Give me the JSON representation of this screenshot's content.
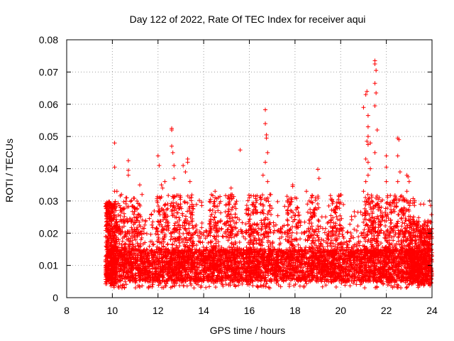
{
  "chart_data": {
    "type": "scatter",
    "title": "Day 122 of 2022, Rate Of TEC Index for receiver aqui",
    "xlabel": "GPS time / hours",
    "ylabel": "ROTI / TECUs",
    "xlim": [
      8,
      24
    ],
    "ylim": [
      0,
      0.08
    ],
    "xticks": [
      "8",
      "10",
      "12",
      "14",
      "16",
      "18",
      "20",
      "22",
      "24"
    ],
    "yticks": [
      "0",
      "0.01",
      "0.02",
      "0.03",
      "0.04",
      "0.05",
      "0.06",
      "0.07",
      "0.08"
    ],
    "grid": true,
    "marker": "+",
    "marker_color": "#ff0000",
    "series": [
      {
        "name": "ROTI",
        "x_range": [
          9.7,
          24.0
        ],
        "typical_range": [
          0.003,
          0.02
        ],
        "dense_band": [
          0.005,
          0.015
        ],
        "outliers": [
          [
            10.1,
            0.048
          ],
          [
            10.1,
            0.0405
          ],
          [
            10.1,
            0.033
          ],
          [
            10.2,
            0.033
          ],
          [
            10.7,
            0.0425
          ],
          [
            10.7,
            0.0395
          ],
          [
            10.7,
            0.038
          ],
          [
            11.2,
            0.035
          ],
          [
            11.3,
            0.032
          ],
          [
            12.0,
            0.044
          ],
          [
            12.05,
            0.041
          ],
          [
            12.15,
            0.035
          ],
          [
            12.2,
            0.034
          ],
          [
            12.3,
            0.036
          ],
          [
            12.6,
            0.052
          ],
          [
            12.6,
            0.0525
          ],
          [
            12.6,
            0.047
          ],
          [
            12.65,
            0.045
          ],
          [
            12.7,
            0.041
          ],
          [
            12.7,
            0.037
          ],
          [
            13.1,
            0.041
          ],
          [
            13.2,
            0.039
          ],
          [
            13.3,
            0.043
          ],
          [
            13.3,
            0.042
          ],
          [
            13.4,
            0.036
          ],
          [
            14.5,
            0.033
          ],
          [
            14.5,
            0.031
          ],
          [
            15.2,
            0.034
          ],
          [
            15.2,
            0.032
          ],
          [
            15.6,
            0.0458
          ],
          [
            16.0,
            0.031
          ],
          [
            16.7,
            0.0583
          ],
          [
            16.7,
            0.054
          ],
          [
            16.75,
            0.0505
          ],
          [
            16.75,
            0.0495
          ],
          [
            16.8,
            0.045
          ],
          [
            16.7,
            0.042
          ],
          [
            16.6,
            0.038
          ],
          [
            16.8,
            0.036
          ],
          [
            16.9,
            0.032
          ],
          [
            16.5,
            0.031
          ],
          [
            17.9,
            0.035
          ],
          [
            17.9,
            0.0345
          ],
          [
            18.0,
            0.031
          ],
          [
            18.5,
            0.033
          ],
          [
            19.0,
            0.0398
          ],
          [
            19.05,
            0.037
          ],
          [
            21.0,
            0.059
          ],
          [
            21.1,
            0.063
          ],
          [
            21.15,
            0.064
          ],
          [
            21.2,
            0.0565
          ],
          [
            21.2,
            0.053
          ],
          [
            21.2,
            0.05
          ],
          [
            21.15,
            0.0485
          ],
          [
            21.2,
            0.0475
          ],
          [
            21.3,
            0.048
          ],
          [
            21.5,
            0.0735
          ],
          [
            21.5,
            0.0725
          ],
          [
            21.55,
            0.0705
          ],
          [
            21.5,
            0.0665
          ],
          [
            21.55,
            0.0635
          ],
          [
            21.5,
            0.0595
          ],
          [
            21.6,
            0.052
          ],
          [
            21.5,
            0.045
          ],
          [
            21.1,
            0.043
          ],
          [
            21.2,
            0.042
          ],
          [
            21.3,
            0.04
          ],
          [
            21.2,
            0.038
          ],
          [
            21.1,
            0.036
          ],
          [
            21.0,
            0.033
          ],
          [
            22.0,
            0.044
          ],
          [
            22.0,
            0.0405
          ],
          [
            22.0,
            0.036
          ],
          [
            22.5,
            0.0495
          ],
          [
            22.55,
            0.049
          ],
          [
            22.5,
            0.044
          ],
          [
            22.6,
            0.039
          ],
          [
            22.5,
            0.036
          ],
          [
            22.9,
            0.038
          ],
          [
            22.95,
            0.0375
          ],
          [
            23.0,
            0.036
          ],
          [
            22.9,
            0.033
          ],
          [
            23.5,
            0.029
          ],
          [
            23.9,
            0.03
          ]
        ]
      }
    ]
  }
}
